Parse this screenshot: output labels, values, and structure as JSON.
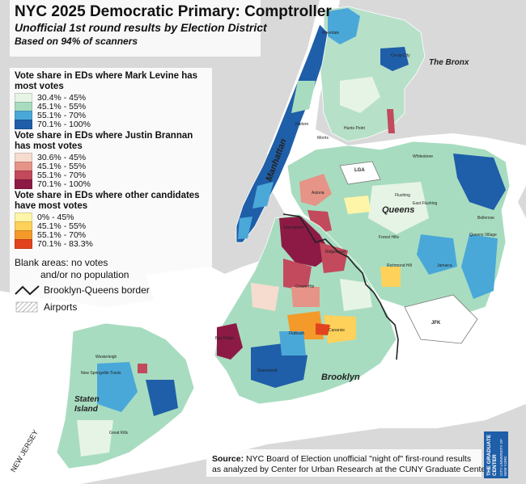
{
  "title": "NYC 2025 Democratic Primary: Comptroller",
  "subtitle": "Unofficial 1st round results by Election District",
  "subtitle2": "Based on 94% of scanners",
  "legend": {
    "groups": [
      {
        "heading": "Vote share in EDs where Mark Levine has most votes",
        "items": [
          {
            "label": "30.4% - 45%",
            "color": "#e6f4e6"
          },
          {
            "label": "45.1% - 55%",
            "color": "#a8dcc0"
          },
          {
            "label": "55.1% - 70%",
            "color": "#4aa8d8"
          },
          {
            "label": "70.1% - 100%",
            "color": "#1f5ea8"
          }
        ]
      },
      {
        "heading": "Vote share in EDs where Justin Brannan has most votes",
        "items": [
          {
            "label": "30.6% - 45%",
            "color": "#f6dccf"
          },
          {
            "label": "45.1% - 55%",
            "color": "#e59487"
          },
          {
            "label": "55.1% - 70%",
            "color": "#c24a5c"
          },
          {
            "label": "70.1% - 100%",
            "color": "#8c1a45"
          }
        ]
      },
      {
        "heading": "Vote share in EDs where other candidates have most votes",
        "items": [
          {
            "label": "0% - 45%",
            "color": "#fff5a8"
          },
          {
            "label": "45.1% - 55%",
            "color": "#fdd15a"
          },
          {
            "label": "55.1% - 70%",
            "color": "#f49a2a"
          },
          {
            "label": "70.1% - 83.3%",
            "color": "#e2431e"
          }
        ]
      }
    ],
    "blank_line1": "Blank areas: no votes",
    "blank_line2": "and/or no population",
    "border_label": "Brooklyn-Queens border",
    "airports_label": "Airports"
  },
  "borough_labels": {
    "bronx": "The Bronx",
    "manhattan": "Manhattan",
    "queens": "Queens",
    "brooklyn": "Brooklyn",
    "staten_island_1": "Staten",
    "staten_island_2": "Island"
  },
  "place_labels": [
    "Riverdale",
    "Co-op City",
    "Hunts Point",
    "Morris",
    "Harlem",
    "Upper West Side",
    "Upper East Side",
    "Midtown",
    "Chelsea",
    "West Village",
    "LGA",
    "Jackson Heights",
    "Astoria",
    "Corona",
    "Flushing",
    "East Flushing",
    "Whitestone",
    "Bay Terrace",
    "Douglaston",
    "College Point",
    "Bellerose",
    "Fresh Meadows",
    "Forest Hills",
    "Kew Gardens",
    "Queens Village",
    "Hollis",
    "Richmond Hill",
    "Jamaica",
    "South Jamaica",
    "St. Albans",
    "Laurelton",
    "Rosedale",
    "South Ozone Park",
    "Ozone Park",
    "Woodhaven",
    "Maspeth",
    "Middle Village",
    "Glendale",
    "Greenpoint",
    "Williamsburg",
    "Bushwick",
    "Ridgewood",
    "Bedford",
    "Crown Hts",
    "East New York",
    "Park Slope",
    "Sunset Park",
    "Bay Ridge",
    "Dyker Heights",
    "Borough Park",
    "Flatbush",
    "Midwood",
    "Flatlands",
    "Canarsie",
    "Bensonhurst",
    "Madison",
    "Gravesend",
    "Seagate Coney Island",
    "JFK",
    "Westerleigh",
    "New Springville-Travis",
    "Great Kills",
    "New Dorp-Midland Beach",
    "Oakwood",
    "Arden Heights"
  ],
  "airports": [
    "LGA",
    "JFK"
  ],
  "source_bold": "Source:",
  "source_line1": " NYC Board of Election unofficial \"night of\" first-round results",
  "source_line2": "as analyzed by Center for Urban Research at the CUNY Graduate Center.",
  "logo": {
    "line1": "THE GRADUATE CENTER",
    "line2": "CITY UNIVERSITY OF NEW YORK"
  },
  "background_labels": {
    "new_jersey": "NEW JERSEY"
  }
}
